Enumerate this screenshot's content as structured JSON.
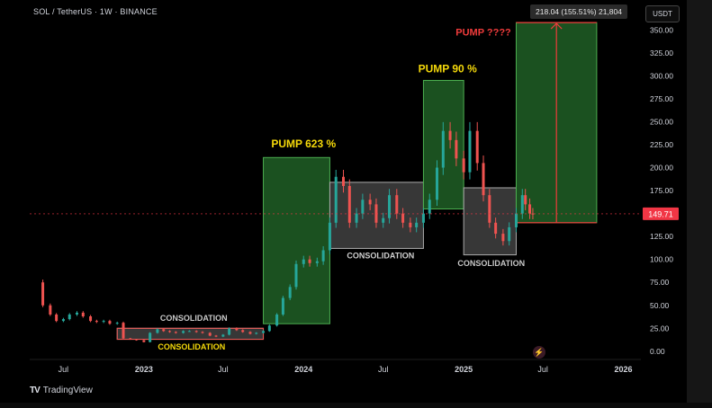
{
  "header": {
    "symbol_text": "SOL / TetherUS · 1W · BINANCE",
    "currency": "USDT",
    "measure_label": "218.04 (155.51%) 21,804"
  },
  "footer": {
    "brand": "TradingView"
  },
  "annotations": {
    "pump1": "PUMP 623 %",
    "pump2": "PUMP 90 %",
    "pump3": "PUMP ????",
    "consolidation": "CONSOLIDATION"
  },
  "colors": {
    "up": "#26a69a",
    "down": "#ef5350",
    "pump_fill": "#1e5a23",
    "pump_stroke": "#4caf50",
    "consol_fill": "#4a4a4a",
    "consol_stroke": "#aaaaaa",
    "pump_text": "#f5d90a",
    "pump3_text": "#ef3b3b",
    "price_tag": "#f23645"
  },
  "chart_data": {
    "type": "candlestick",
    "y_axis_ticks": [
      "350.00",
      "325.00",
      "300.00",
      "275.00",
      "250.00",
      "225.00",
      "200.00",
      "175.00",
      "150.00",
      "125.00",
      "100.00",
      "75.00",
      "50.00",
      "25.00",
      "0.00"
    ],
    "y_axis_values": [
      350,
      325,
      300,
      275,
      250,
      225,
      200,
      175,
      150,
      125,
      100,
      75,
      50,
      25,
      0
    ],
    "ylim": [
      -7,
      363
    ],
    "x_axis_ticks": [
      "Jul",
      "2023",
      "Jul",
      "2024",
      "Jul",
      "2025",
      "Jul",
      "2026"
    ],
    "x_axis_dates": [
      "2022-07",
      "2023-01",
      "2023-07",
      "2024-01",
      "2024-07",
      "2025-01",
      "2025-07",
      "2026-01"
    ],
    "last_price": "149.71",
    "last_price_value": 149.71,
    "zones": [
      {
        "kind": "consolidation",
        "label": "CONSOLIDATION",
        "label_color": "consol",
        "start": "2022-11",
        "end": "2023-10",
        "low": 13,
        "high": 25
      },
      {
        "kind": "pump",
        "label": "PUMP 623 %",
        "start": "2023-10",
        "end": "2024-03",
        "low": 30,
        "high": 211
      },
      {
        "kind": "consolidation",
        "label": "CONSOLIDATION",
        "start": "2024-03",
        "end": "2024-10",
        "low": 112,
        "high": 184
      },
      {
        "kind": "pump",
        "label": "PUMP 90 %",
        "start": "2024-10",
        "end": "2025-01",
        "low": 155,
        "high": 295
      },
      {
        "kind": "consolidation",
        "label": "CONSOLIDATION",
        "start": "2025-01",
        "end": "2025-05",
        "low": 105,
        "high": 178
      },
      {
        "kind": "pump_projection",
        "label": "PUMP ????",
        "start": "2025-05",
        "end": "2025-11",
        "low": 140,
        "high": 358
      }
    ],
    "prices": [
      [
        "2022-05-01",
        75
      ],
      [
        "2022-05-15",
        50
      ],
      [
        "2022-06-01",
        40
      ],
      [
        "2022-06-15",
        33
      ],
      [
        "2022-07-01",
        35
      ],
      [
        "2022-07-15",
        40
      ],
      [
        "2022-08-01",
        42
      ],
      [
        "2022-08-15",
        38
      ],
      [
        "2022-09-01",
        33
      ],
      [
        "2022-09-15",
        32
      ],
      [
        "2022-10-01",
        33
      ],
      [
        "2022-10-15",
        30
      ],
      [
        "2022-11-01",
        31
      ],
      [
        "2022-11-15",
        14
      ],
      [
        "2022-12-01",
        13
      ],
      [
        "2022-12-15",
        12
      ],
      [
        "2023-01-01",
        10
      ],
      [
        "2023-01-15",
        20
      ],
      [
        "2023-02-01",
        24
      ],
      [
        "2023-02-15",
        22
      ],
      [
        "2023-03-01",
        21
      ],
      [
        "2023-03-15",
        20
      ],
      [
        "2023-04-01",
        22
      ],
      [
        "2023-04-15",
        22
      ],
      [
        "2023-05-01",
        21
      ],
      [
        "2023-05-15",
        20
      ],
      [
        "2023-06-01",
        17
      ],
      [
        "2023-06-15",
        16
      ],
      [
        "2023-07-01",
        18
      ],
      [
        "2023-07-15",
        25
      ],
      [
        "2023-08-01",
        23
      ],
      [
        "2023-08-15",
        21
      ],
      [
        "2023-09-01",
        19
      ],
      [
        "2023-09-15",
        20
      ],
      [
        "2023-10-01",
        22
      ],
      [
        "2023-10-15",
        28
      ],
      [
        "2023-11-01",
        40
      ],
      [
        "2023-11-15",
        58
      ],
      [
        "2023-12-01",
        70
      ],
      [
        "2023-12-15",
        95
      ],
      [
        "2024-01-01",
        100
      ],
      [
        "2024-01-15",
        96
      ],
      [
        "2024-02-01",
        98
      ],
      [
        "2024-02-15",
        110
      ],
      [
        "2024-03-01",
        140
      ],
      [
        "2024-03-15",
        190
      ],
      [
        "2024-04-01",
        180
      ],
      [
        "2024-04-15",
        140
      ],
      [
        "2024-05-01",
        150
      ],
      [
        "2024-05-15",
        165
      ],
      [
        "2024-06-01",
        160
      ],
      [
        "2024-06-15",
        140
      ],
      [
        "2024-07-01",
        145
      ],
      [
        "2024-07-15",
        170
      ],
      [
        "2024-08-01",
        150
      ],
      [
        "2024-08-15",
        140
      ],
      [
        "2024-09-01",
        135
      ],
      [
        "2024-09-15",
        140
      ],
      [
        "2024-10-01",
        150
      ],
      [
        "2024-10-15",
        165
      ],
      [
        "2024-11-01",
        200
      ],
      [
        "2024-11-15",
        240
      ],
      [
        "2024-12-01",
        230
      ],
      [
        "2024-12-15",
        210
      ],
      [
        "2025-01-01",
        195
      ],
      [
        "2025-01-15",
        240
      ],
      [
        "2025-02-01",
        205
      ],
      [
        "2025-02-15",
        170
      ],
      [
        "2025-03-01",
        140
      ],
      [
        "2025-03-15",
        128
      ],
      [
        "2025-04-01",
        120
      ],
      [
        "2025-04-15",
        135
      ],
      [
        "2025-05-01",
        150
      ],
      [
        "2025-05-15",
        170
      ],
      [
        "2025-05-22",
        160
      ],
      [
        "2025-06-01",
        150
      ],
      [
        "2025-06-08",
        149.71
      ]
    ]
  }
}
